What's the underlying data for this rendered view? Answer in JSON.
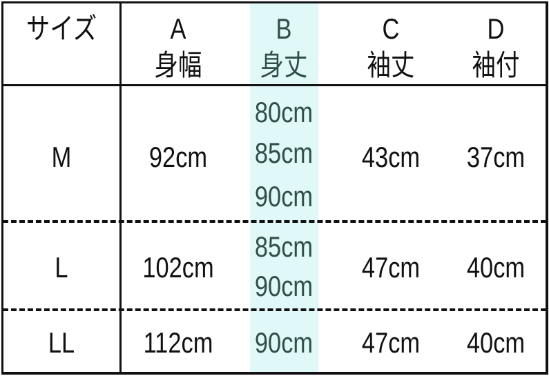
{
  "colors": {
    "highlight_column": "#e0f8f8",
    "highlight_text": "#2f4f4a",
    "text": "#111111"
  },
  "header": {
    "size_label": "サイズ",
    "columns": [
      {
        "letter": "A",
        "name": "身幅"
      },
      {
        "letter": "B",
        "name": "身丈"
      },
      {
        "letter": "C",
        "name": "袖丈"
      },
      {
        "letter": "D",
        "name": "袖付"
      }
    ]
  },
  "rows": [
    {
      "size": "M",
      "A": "92cm",
      "B": [
        "80cm",
        "85cm",
        "90cm"
      ],
      "C": "43cm",
      "D": "37cm"
    },
    {
      "size": "L",
      "A": "102cm",
      "B": [
        "85cm",
        "90cm"
      ],
      "C": "47cm",
      "D": "40cm"
    },
    {
      "size": "LL",
      "A": "112cm",
      "B": [
        "90cm"
      ],
      "C": "47cm",
      "D": "40cm"
    }
  ]
}
